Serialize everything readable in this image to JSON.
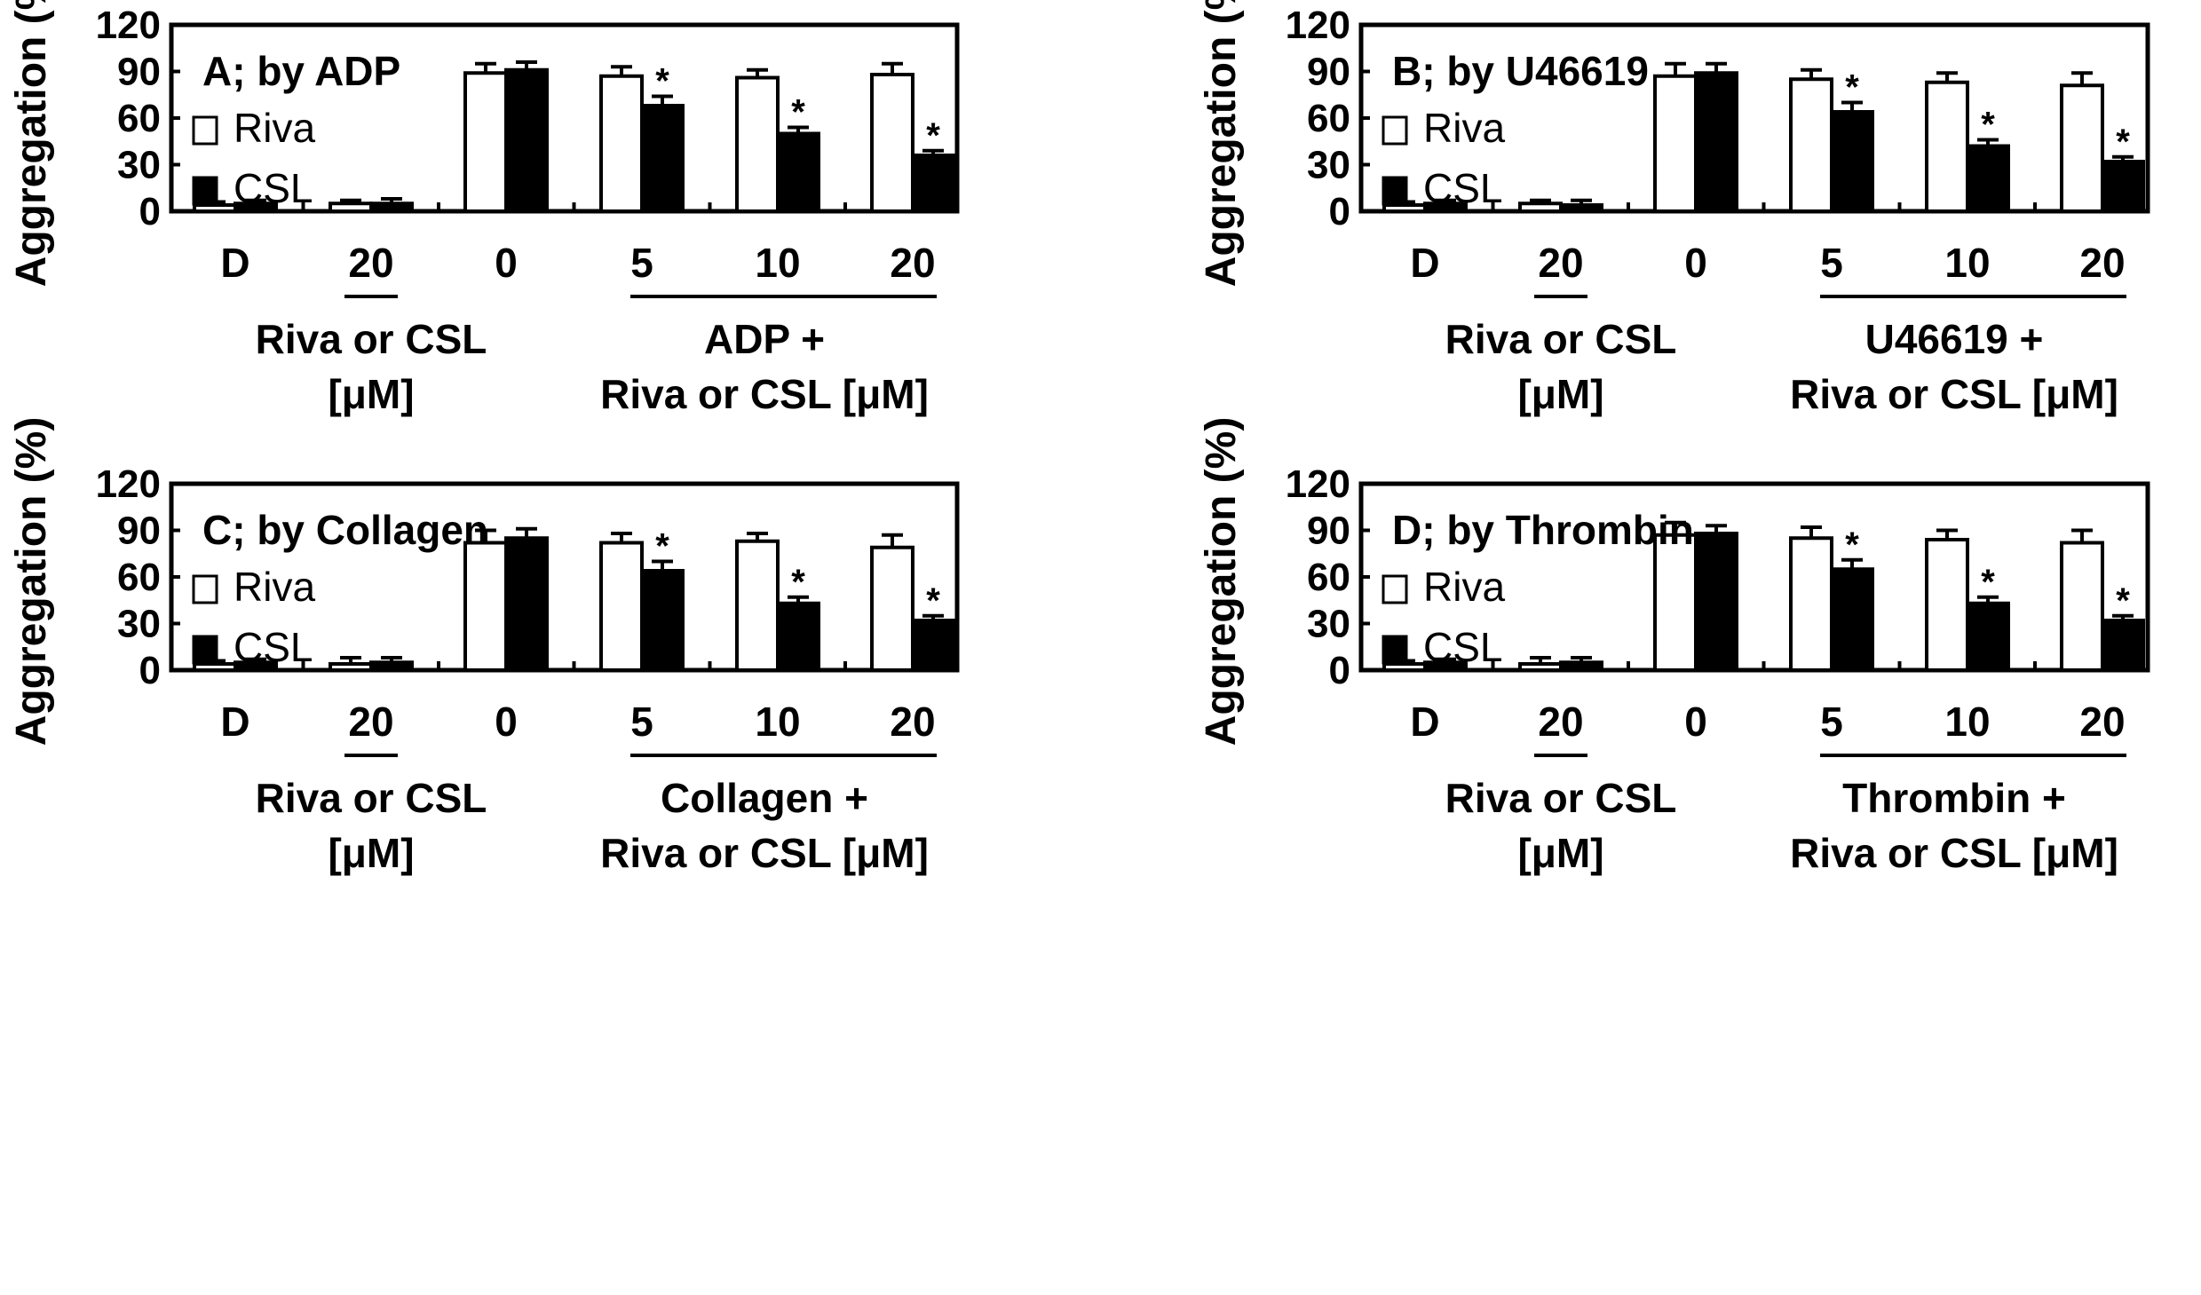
{
  "chart_data": [
    {
      "type": "bar",
      "title": "A; by ADP",
      "ylabel": "Aggregation (%)",
      "ylim": [
        0,
        120
      ],
      "yticks": [
        0,
        30,
        60,
        90,
        120
      ],
      "categories": [
        "D",
        "20",
        "0",
        "5",
        "10",
        "20"
      ],
      "series": [
        {
          "name": "Riva",
          "color": "#ffffff",
          "values": [
            4,
            5,
            89,
            87,
            86,
            88
          ],
          "errors": [
            2,
            2,
            6,
            6,
            5,
            7
          ]
        },
        {
          "name": "CSL",
          "color": "#000000",
          "values": [
            5,
            5,
            91,
            68,
            50,
            36
          ],
          "errors": [
            2,
            3,
            5,
            6,
            4,
            3
          ]
        }
      ],
      "significance": [
        "",
        "",
        "",
        "*",
        "*",
        "*"
      ],
      "group_labels": [
        {
          "line1": "Riva or CSL",
          "line2": "[μM]"
        },
        {
          "line1": "ADP +",
          "line2": "Riva or CSL [μM]"
        }
      ]
    },
    {
      "type": "bar",
      "title": "B; by U46619",
      "ylabel": "Aggregation (%)",
      "ylim": [
        0,
        120
      ],
      "yticks": [
        0,
        30,
        60,
        90,
        120
      ],
      "categories": [
        "D",
        "20",
        "0",
        "5",
        "10",
        "20"
      ],
      "series": [
        {
          "name": "Riva",
          "color": "#ffffff",
          "values": [
            4,
            5,
            87,
            85,
            83,
            81
          ],
          "errors": [
            2,
            2,
            8,
            6,
            6,
            8
          ]
        },
        {
          "name": "CSL",
          "color": "#000000",
          "values": [
            5,
            4,
            89,
            64,
            42,
            32
          ],
          "errors": [
            2,
            3,
            6,
            6,
            4,
            3
          ]
        }
      ],
      "significance": [
        "",
        "",
        "",
        "*",
        "*",
        "*"
      ],
      "group_labels": [
        {
          "line1": "Riva or CSL",
          "line2": "[μM]"
        },
        {
          "line1": "U46619 +",
          "line2": "Riva or CSL [μM]"
        }
      ]
    },
    {
      "type": "bar",
      "title": "C; by Collagen",
      "ylabel": "Aggregation (%)",
      "ylim": [
        0,
        120
      ],
      "yticks": [
        0,
        30,
        60,
        90,
        120
      ],
      "categories": [
        "D",
        "20",
        "0",
        "5",
        "10",
        "20"
      ],
      "series": [
        {
          "name": "Riva",
          "color": "#ffffff",
          "values": [
            4,
            4,
            82,
            82,
            83,
            79
          ],
          "errors": [
            2,
            4,
            8,
            6,
            5,
            8
          ]
        },
        {
          "name": "CSL",
          "color": "#000000",
          "values": [
            5,
            5,
            85,
            64,
            43,
            32
          ],
          "errors": [
            2,
            3,
            6,
            6,
            4,
            3
          ]
        }
      ],
      "significance": [
        "",
        "",
        "",
        "*",
        "*",
        "*"
      ],
      "group_labels": [
        {
          "line1": "Riva or CSL",
          "line2": "[μM]"
        },
        {
          "line1": "Collagen +",
          "line2": "Riva or CSL [μM]"
        }
      ]
    },
    {
      "type": "bar",
      "title": "D; by Thrombin",
      "ylabel": "Aggregation (%)",
      "ylim": [
        0,
        120
      ],
      "yticks": [
        0,
        30,
        60,
        90,
        120
      ],
      "categories": [
        "D",
        "20",
        "0",
        "5",
        "10",
        "20"
      ],
      "series": [
        {
          "name": "Riva",
          "color": "#ffffff",
          "values": [
            4,
            4,
            87,
            85,
            84,
            82
          ],
          "errors": [
            2,
            4,
            8,
            7,
            6,
            8
          ]
        },
        {
          "name": "CSL",
          "color": "#000000",
          "values": [
            5,
            5,
            88,
            65,
            43,
            32
          ],
          "errors": [
            2,
            3,
            5,
            6,
            4,
            3
          ]
        }
      ],
      "significance": [
        "",
        "",
        "",
        "*",
        "*",
        "*"
      ],
      "group_labels": [
        {
          "line1": "Riva or CSL",
          "line2": "[μM]"
        },
        {
          "line1": "Thrombin +",
          "line2": "Riva or CSL [μM]"
        }
      ]
    }
  ]
}
